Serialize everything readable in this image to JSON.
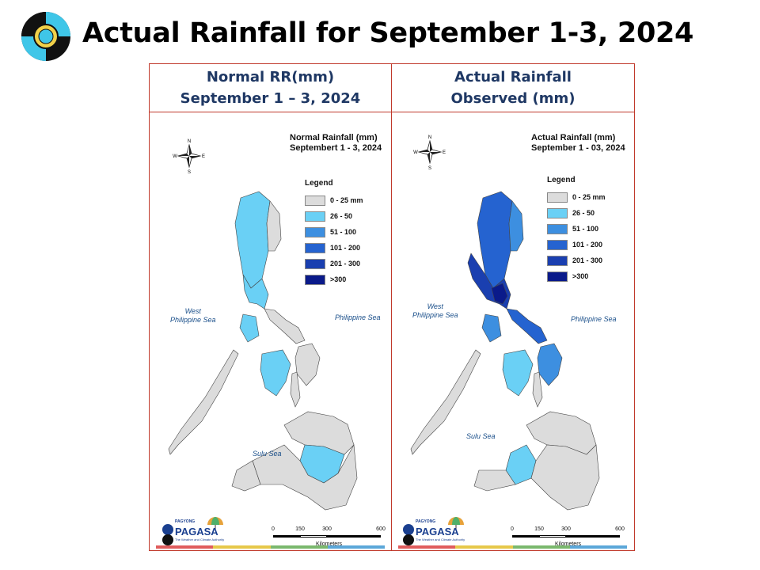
{
  "title": "Actual Rainfall for September 1-3, 2024",
  "colors": {
    "frame_border": "#c0392b",
    "heading_text": "#1f3864",
    "sea_label": "#1a4f8a",
    "no_data_fill": "#ffffff",
    "stripes": [
      "#e05c5c",
      "#e6c84a",
      "#7ab86d",
      "#5ba7d9"
    ]
  },
  "panels": [
    {
      "heading_line1": "Normal RR(mm)",
      "heading_line2": "September 1 – 3, 2024",
      "map_title_line1": "Normal Rainfall (mm)",
      "map_title_line2": "Septembert 1 - 3, 2024",
      "legend_title": "Legend",
      "west_sea_line1": "West",
      "west_sea_line2": "Philippine Sea",
      "east_sea": "Philippine Sea",
      "south_sea": "Sulu Sea",
      "compass": [
        "N",
        "E",
        "S",
        "W"
      ],
      "scale_ticks": [
        "0",
        "150",
        "300",
        "600"
      ],
      "scale_unit": "Kilometers",
      "brand_name": "PAGASA",
      "brand_prefix": "DOST",
      "brand_sub": "PAGYONG",
      "brand_tagline": "The Weather and Climate Authority"
    },
    {
      "heading_line1": "Actual Rainfall",
      "heading_line2": "Observed (mm)",
      "map_title_line1": "Actual Rainfall (mm)",
      "map_title_line2": "September 1 - 03, 2024",
      "legend_title": "Legend",
      "west_sea_line1": "West",
      "west_sea_line2": "Philippine Sea",
      "east_sea": "Philippine Sea",
      "south_sea": "Sulu Sea",
      "compass": [
        "N",
        "E",
        "S",
        "W"
      ],
      "scale_ticks": [
        "0",
        "150",
        "300",
        "600"
      ],
      "scale_unit": "Kilometers",
      "brand_name": "PAGASA",
      "brand_prefix": "DOST",
      "brand_sub": "PAGYONG",
      "brand_tagline": "The Weather and Climate Authority"
    }
  ],
  "legend": [
    {
      "label": "0 - 25 mm",
      "color": "#dcdcdc"
    },
    {
      "label": "26 - 50",
      "color": "#6ad0f5"
    },
    {
      "label": "51 - 100",
      "color": "#3d8fe0"
    },
    {
      "label": "101 - 200",
      "color": "#2563d0"
    },
    {
      "label": "201 - 300",
      "color": "#1a3fb0"
    },
    {
      "label": ">300",
      "color": "#0a1a8a"
    }
  ],
  "regions": {
    "normal": {
      "northern_luzon": "26 - 50",
      "northeast_luzon": "0 - 25 mm",
      "central_luzon": "26 - 50",
      "bicol": "0 - 25 mm",
      "mindoro": "26 - 50",
      "palawan": "0 - 25 mm",
      "visayas_west": "26 - 50",
      "visayas_east": "0 - 25 mm",
      "mindanao_north": "0 - 25 mm",
      "mindanao_central": "26 - 50",
      "mindanao_south": "0 - 25 mm"
    },
    "actual": {
      "northern_luzon": "101 - 200",
      "northeast_luzon": "51 - 100",
      "central_luzon": "201 - 300",
      "manila_area": ">300",
      "bicol": "101 - 200",
      "mindoro": "51 - 100",
      "palawan": "0 - 25 mm",
      "visayas_west": "26 - 50",
      "visayas_east": "51 - 100",
      "mindanao_north": "0 - 25 mm",
      "mindanao_central": "26 - 50",
      "mindanao_south": "0 - 25 mm"
    }
  }
}
